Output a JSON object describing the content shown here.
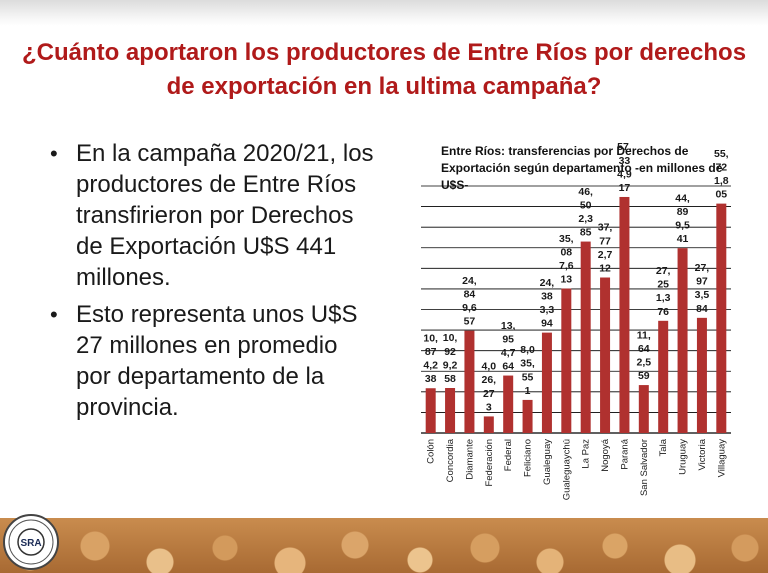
{
  "slide": {
    "title": "¿Cuánto aportaron los productores de Entre Ríos por derechos de exportación en la ultima campaña?",
    "bullets": [
      "En la campaña 2020/21, los productores de Entre Ríos transfirieron por Derechos de Exportación U$S 441 millones.",
      "Esto representa unos U$S 27 millones en promedio por departamento de la provincia."
    ],
    "logo_text": "SRA",
    "logo_icon": "sra-seal-icon"
  },
  "colors": {
    "title": "#b01a1a",
    "bar": "#b0312f",
    "grid": "#000000"
  },
  "chart_data": {
    "type": "bar",
    "title": "Entre Ríos: transferencias por Derechos de Exportación  según departamento -en millones de U$S-",
    "xlabel": "",
    "ylabel": "",
    "ylim": [
      0,
      60
    ],
    "grid": true,
    "categories": [
      "Colón",
      "Concordia",
      "Diamante",
      "Federación",
      "Federal",
      "Feliciano",
      "Gualeguay",
      "Gualeguaychú",
      "La Paz",
      "Nogoyá",
      "Paraná",
      "San Salvador",
      "Tala",
      "Uruguay",
      "Victoria",
      "Villaguay"
    ],
    "values": [
      10.874238,
      10.929258,
      24.84957,
      4.026273,
      13.954764,
      8.035551,
      24.383394,
      35.087613,
      46.502385,
      37.772712,
      57.334917,
      11.642559,
      27.251376,
      44.899541,
      27.973584,
      55.721805
    ],
    "data_labels": [
      [
        "10,",
        "87",
        "4,2",
        "38"
      ],
      [
        "10,",
        "92",
        "9,2",
        "58"
      ],
      [
        "24,",
        "84",
        "9,6",
        "57"
      ],
      [
        "4,0",
        "26,",
        "27",
        "3"
      ],
      [
        "13,",
        "95",
        "4,7",
        "64"
      ],
      [
        "8,0",
        "35,",
        "55",
        "1"
      ],
      [
        "24,",
        "38",
        "3,3",
        "94"
      ],
      [
        "35,",
        "08",
        "7,6",
        "13"
      ],
      [
        "46,",
        "50",
        "2,3",
        "85"
      ],
      [
        "37,",
        "77",
        "2,7",
        "12"
      ],
      [
        "57,",
        "33",
        "4,9",
        "17"
      ],
      [
        "11,",
        "64",
        "2,5",
        "59"
      ],
      [
        "27,",
        "25",
        "1,3",
        "76"
      ],
      [
        "44,",
        "89",
        "9,5",
        "41"
      ],
      [
        "27,",
        "97",
        "3,5",
        "84"
      ],
      [
        "55,",
        "72",
        "1,8",
        "05"
      ]
    ]
  }
}
